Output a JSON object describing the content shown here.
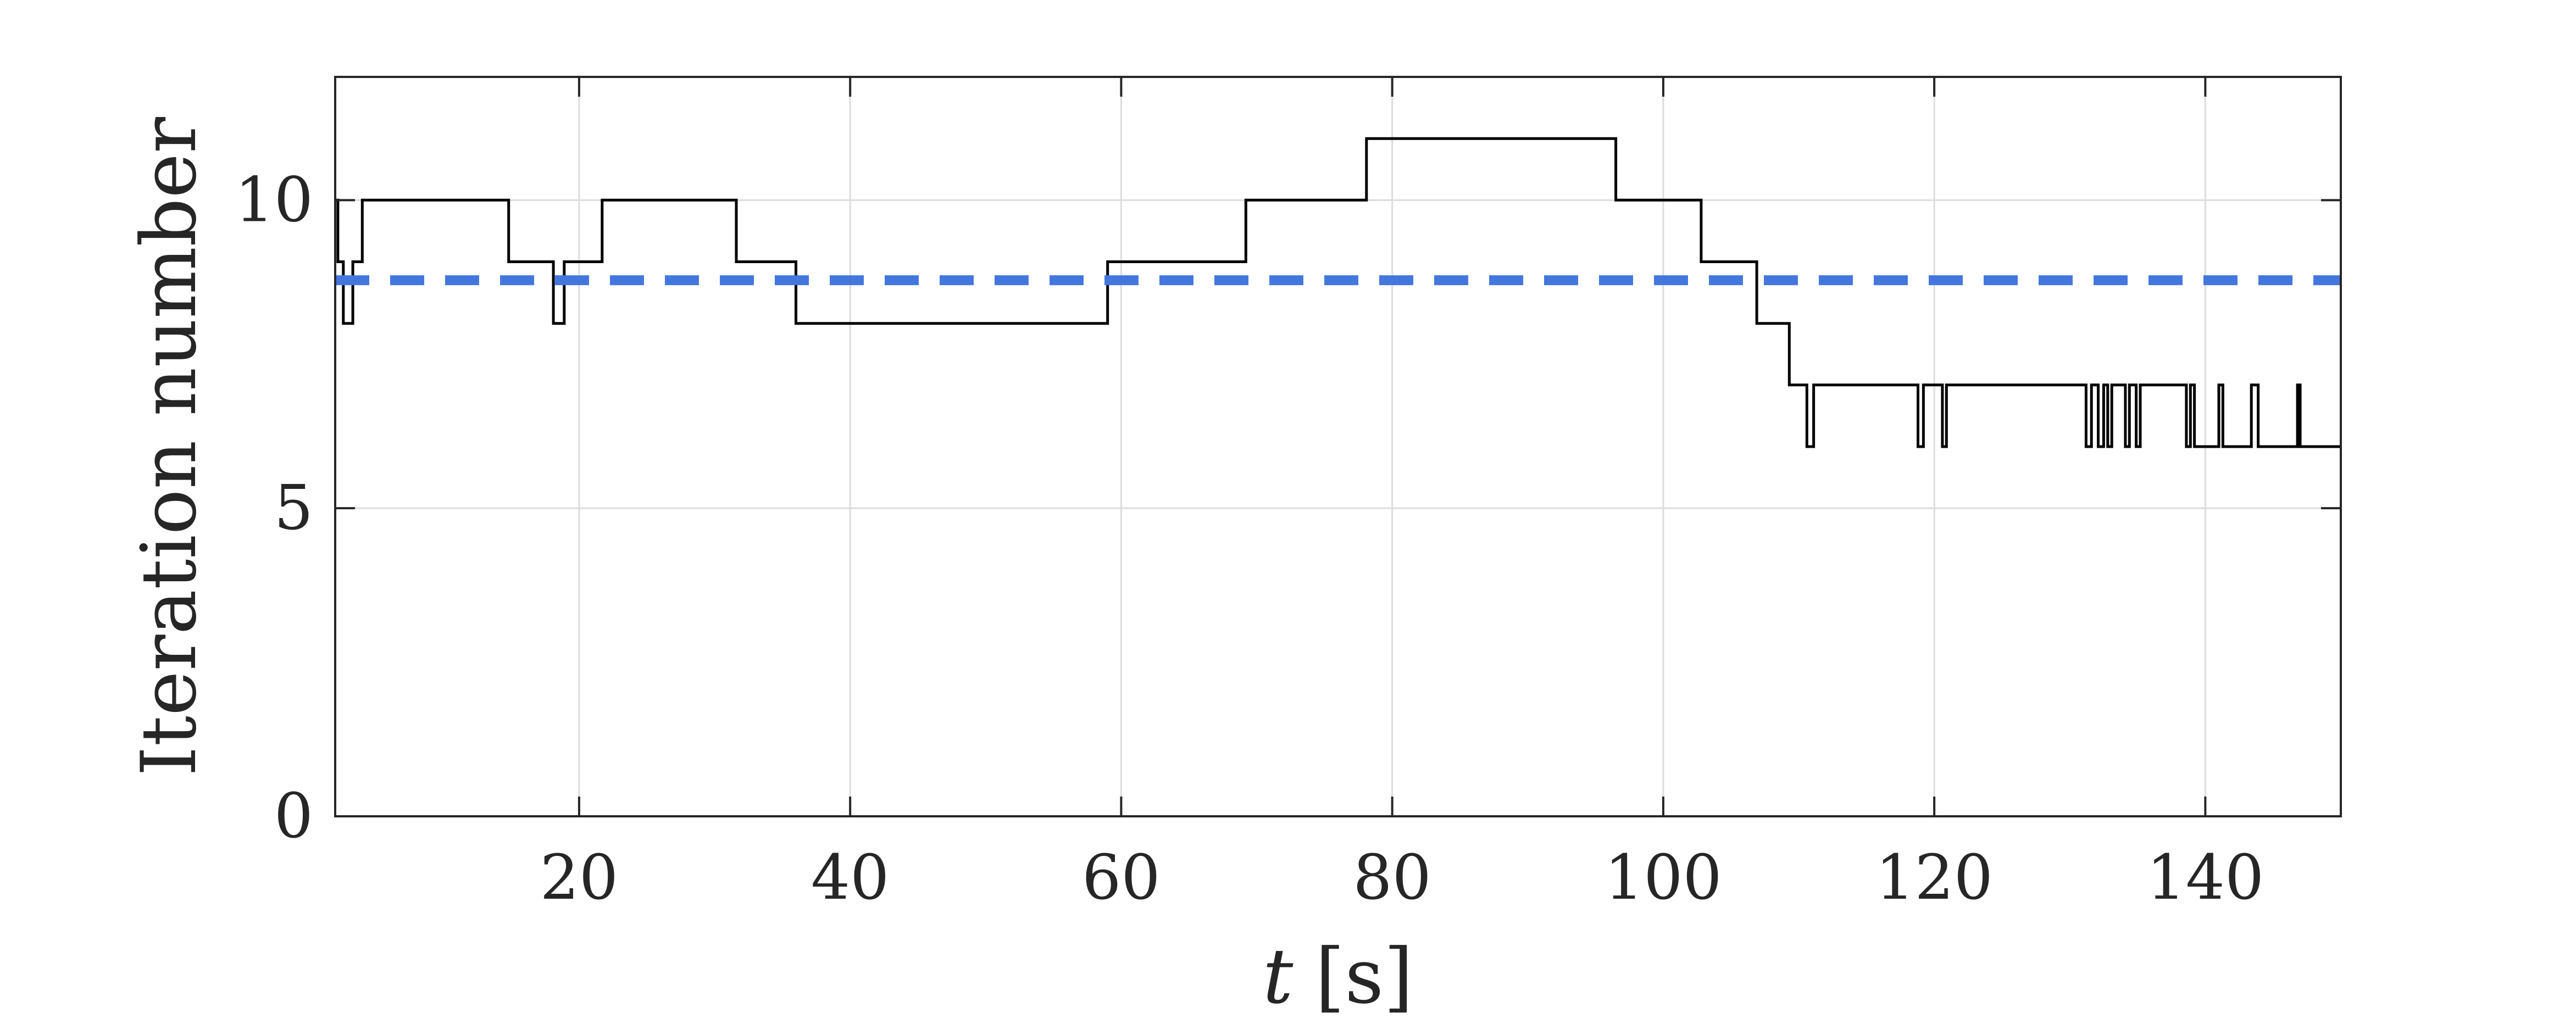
{
  "chart_data": {
    "type": "line",
    "title": "",
    "xlabel_var": "t",
    "xlabel_unit": "[s]",
    "ylabel": "Iteration number",
    "xlim": [
      2,
      150
    ],
    "ylim": [
      0,
      12
    ],
    "xticks": [
      20,
      40,
      60,
      80,
      100,
      120,
      140
    ],
    "xtick_labels": [
      "20",
      "40",
      "60",
      "80",
      "100",
      "120",
      "140"
    ],
    "yticks": [
      0,
      5,
      10
    ],
    "ytick_labels": [
      "0",
      "5",
      "10"
    ],
    "grid": true,
    "legend": "none",
    "series": [
      {
        "style": "solid",
        "color": "#000000",
        "steps": [
          [
            2,
            10
          ],
          [
            2.2,
            9
          ],
          [
            2.6,
            8
          ],
          [
            3.3,
            9
          ],
          [
            4,
            10
          ],
          [
            14.8,
            9
          ],
          [
            18.1,
            8
          ],
          [
            18.9,
            9
          ],
          [
            21.7,
            10
          ],
          [
            31.6,
            9
          ],
          [
            36,
            8
          ],
          [
            59,
            9
          ],
          [
            69.2,
            10
          ],
          [
            78.1,
            11
          ],
          [
            96.5,
            10
          ],
          [
            102.8,
            9
          ],
          [
            106.9,
            8
          ],
          [
            109.3,
            7
          ],
          [
            110.6,
            6
          ],
          [
            111.1,
            7
          ],
          [
            118.8,
            6
          ],
          [
            119.2,
            7
          ],
          [
            120.6,
            6
          ],
          [
            120.9,
            7
          ],
          [
            131.2,
            6
          ],
          [
            131.6,
            7
          ],
          [
            132.1,
            6
          ],
          [
            132.5,
            7
          ],
          [
            132.8,
            6
          ],
          [
            133.1,
            7
          ],
          [
            134.1,
            6
          ],
          [
            134.4,
            7
          ],
          [
            134.9,
            6
          ],
          [
            135.2,
            7
          ],
          [
            138.6,
            6
          ],
          [
            138.9,
            7
          ],
          [
            139.2,
            6
          ],
          [
            141,
            7
          ],
          [
            141.3,
            6
          ],
          [
            143.4,
            7
          ],
          [
            143.9,
            6
          ],
          [
            146.8,
            7
          ],
          [
            147,
            6
          ],
          [
            150,
            6
          ]
        ]
      },
      {
        "style": "dashed",
        "color": "#4477dd",
        "constant": 8.7
      }
    ]
  }
}
